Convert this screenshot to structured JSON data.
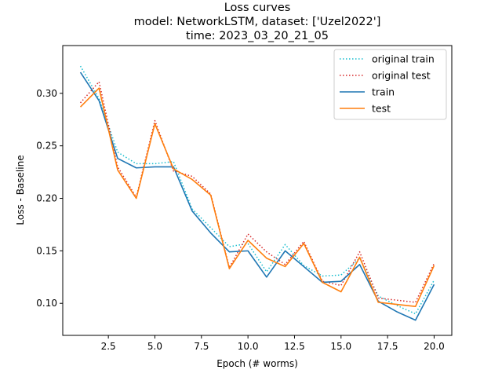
{
  "chart_data": {
    "type": "line",
    "title_lines": [
      "Loss curves",
      "model: NetworkLSTM, dataset: ['Uzel2022']",
      "time: 2023_03_20_21_05"
    ],
    "xlabel": "Epoch (# worms)",
    "ylabel": "Loss - Baseline",
    "xlim": [
      0.05,
      20.95
    ],
    "ylim": [
      0.0695,
      0.3455
    ],
    "xticks": [
      2.5,
      5.0,
      7.5,
      10.0,
      12.5,
      15.0,
      17.5,
      20.0
    ],
    "xtick_labels": [
      "2.5",
      "5.0",
      "7.5",
      "10.0",
      "12.5",
      "15.0",
      "17.5",
      "20.0"
    ],
    "yticks": [
      0.1,
      0.15,
      0.2,
      0.25,
      0.3
    ],
    "ytick_labels": [
      "0.10",
      "0.15",
      "0.20",
      "0.25",
      "0.30"
    ],
    "legend_position": "top-right",
    "x": [
      1,
      2,
      3,
      4,
      5,
      6,
      7,
      8,
      9,
      10,
      11,
      12,
      13,
      14,
      15,
      16,
      17,
      18,
      19,
      20
    ],
    "series": [
      {
        "name": "original train",
        "color": "#17becf",
        "style": "dotted",
        "values": [
          0.326,
          0.295,
          0.244,
          0.233,
          0.233,
          0.235,
          0.19,
          0.172,
          0.154,
          0.157,
          0.13,
          0.156,
          0.136,
          0.126,
          0.127,
          0.143,
          0.107,
          0.098,
          0.09,
          0.122
        ]
      },
      {
        "name": "original test",
        "color": "#d62728",
        "style": "dotted",
        "values": [
          0.291,
          0.311,
          0.23,
          0.201,
          0.274,
          0.226,
          0.221,
          0.204,
          0.134,
          0.166,
          0.149,
          0.137,
          0.159,
          0.121,
          0.117,
          0.149,
          0.105,
          0.103,
          0.101,
          0.138
        ]
      },
      {
        "name": "train",
        "color": "#1f77b4",
        "style": "solid",
        "values": [
          0.32,
          0.293,
          0.238,
          0.229,
          0.23,
          0.23,
          0.188,
          0.167,
          0.149,
          0.15,
          0.125,
          0.15,
          0.135,
          0.12,
          0.121,
          0.137,
          0.102,
          0.092,
          0.084,
          0.118
        ]
      },
      {
        "name": "test",
        "color": "#ff7f0e",
        "style": "solid",
        "values": [
          0.287,
          0.305,
          0.227,
          0.2,
          0.271,
          0.228,
          0.218,
          0.203,
          0.133,
          0.16,
          0.143,
          0.135,
          0.157,
          0.12,
          0.111,
          0.144,
          0.101,
          0.099,
          0.097,
          0.136
        ]
      }
    ]
  }
}
